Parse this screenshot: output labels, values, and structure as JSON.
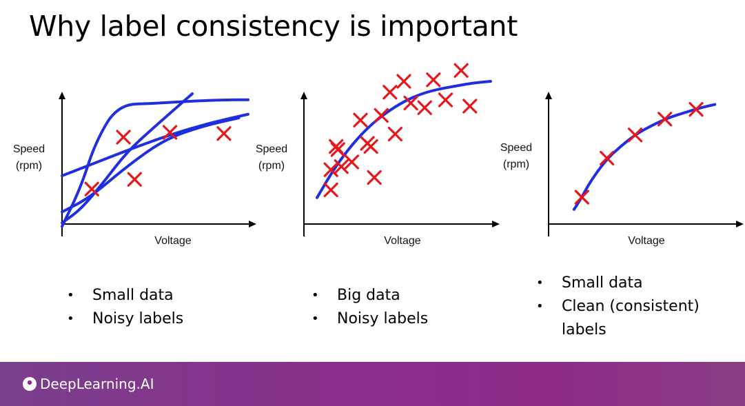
{
  "slide": {
    "title": "Why label consistency is important",
    "brand": "DeepLearning.AI"
  },
  "colors": {
    "curve": "#1f2fe0",
    "marker": "#e8151b",
    "axis": "#000000",
    "footer": "#8b2f8a"
  },
  "chart_data": [
    {
      "type": "scatter",
      "xlabel": "Voltage",
      "ylabel_lines": [
        "Speed",
        "(rpm)"
      ],
      "bullets": [
        "Small data",
        "Noisy labels"
      ],
      "points": [
        [
          0.33,
          0.72
        ],
        [
          0.58,
          0.76
        ],
        [
          0.87,
          0.75
        ],
        [
          0.16,
          0.29
        ],
        [
          0.39,
          0.37
        ]
      ],
      "fits": [
        [
          [
            0.0,
            -0.02
          ],
          [
            0.1,
            0.3
          ],
          [
            0.18,
            0.68
          ],
          [
            0.3,
            0.99
          ],
          [
            0.5,
            1.0
          ],
          [
            0.7,
            1.02
          ],
          [
            0.9,
            1.03
          ],
          [
            1.0,
            1.03
          ]
        ],
        [
          [
            0.0,
            0.01
          ],
          [
            0.1,
            0.12
          ],
          [
            0.22,
            0.34
          ],
          [
            0.35,
            0.6
          ],
          [
            0.5,
            0.81
          ],
          [
            0.7,
            1.08
          ]
        ],
        [
          [
            0.0,
            0.4
          ],
          [
            0.2,
            0.52
          ],
          [
            0.4,
            0.64
          ],
          [
            0.6,
            0.75
          ],
          [
            0.8,
            0.84
          ],
          [
            1.0,
            0.91
          ]
        ],
        [
          [
            0.0,
            0.1
          ],
          [
            0.15,
            0.22
          ],
          [
            0.35,
            0.48
          ],
          [
            0.55,
            0.7
          ],
          [
            0.75,
            0.81
          ],
          [
            0.95,
            0.88
          ]
        ]
      ]
    },
    {
      "type": "scatter",
      "xlabel": "Voltage",
      "ylabel_lines": [
        "Speed",
        "(rpm)"
      ],
      "bullets": [
        "Big data",
        "Noisy labels"
      ],
      "points": [
        [
          0.08,
          0.22
        ],
        [
          0.11,
          0.5
        ],
        [
          0.14,
          0.37
        ],
        [
          0.2,
          0.4
        ],
        [
          0.25,
          0.67
        ],
        [
          0.29,
          0.52
        ],
        [
          0.31,
          0.5
        ],
        [
          0.33,
          0.3
        ],
        [
          0.37,
          0.7
        ],
        [
          0.42,
          0.85
        ],
        [
          0.45,
          0.58
        ],
        [
          0.5,
          0.92
        ],
        [
          0.54,
          0.78
        ],
        [
          0.62,
          0.75
        ],
        [
          0.67,
          0.93
        ],
        [
          0.74,
          0.8
        ],
        [
          0.83,
          0.99
        ],
        [
          0.88,
          0.76
        ],
        [
          0.12,
          0.48
        ],
        [
          0.08,
          0.35
        ]
      ],
      "fits": [
        [
          [
            0.0,
            0.17
          ],
          [
            0.1,
            0.36
          ],
          [
            0.2,
            0.51
          ],
          [
            0.3,
            0.63
          ],
          [
            0.4,
            0.72
          ],
          [
            0.5,
            0.79
          ],
          [
            0.6,
            0.84
          ],
          [
            0.7,
            0.87
          ],
          [
            0.8,
            0.89
          ],
          [
            0.9,
            0.91
          ],
          [
            1.0,
            0.92
          ]
        ]
      ]
    },
    {
      "type": "scatter",
      "xlabel": "Voltage",
      "ylabel_lines": [
        "Speed",
        "(rpm)"
      ],
      "bullets": [
        "Small data",
        "Clean (consistent)",
        "labels"
      ],
      "points": [
        [
          0.05,
          0.22
        ],
        [
          0.21,
          0.54
        ],
        [
          0.39,
          0.73
        ],
        [
          0.58,
          0.86
        ],
        [
          0.78,
          0.94
        ]
      ],
      "fits": [
        [
          [
            0.0,
            0.12
          ],
          [
            0.05,
            0.22
          ],
          [
            0.1,
            0.34
          ],
          [
            0.2,
            0.52
          ],
          [
            0.3,
            0.64
          ],
          [
            0.4,
            0.74
          ],
          [
            0.5,
            0.81
          ],
          [
            0.6,
            0.87
          ],
          [
            0.7,
            0.91
          ],
          [
            0.8,
            0.95
          ],
          [
            0.9,
            0.98
          ]
        ]
      ]
    }
  ]
}
